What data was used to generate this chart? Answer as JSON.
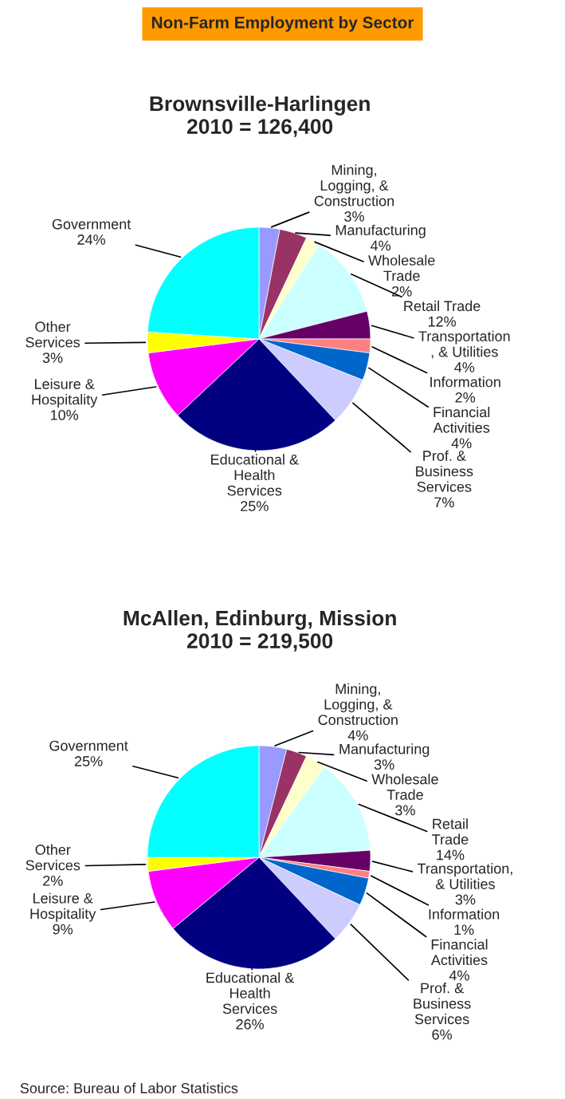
{
  "chart_data": [
    {
      "type": "pie",
      "title": "Brownsville-Harlingen\n2010 = 126,400",
      "annotations": [
        "Non-Farm Employment by Sector"
      ],
      "categories": [
        "Mining,\nLogging, &\nConstruction",
        "Manufacturing",
        "Wholesale\nTrade",
        "Retail Trade",
        "Transportation\n, & Utilities",
        "Information",
        "Financial\nActivities",
        "Prof. &\nBusiness\nServices",
        "Educational &\nHealth\nServices",
        "Leisure &\nHospitality",
        "Other\nServices",
        "Government"
      ],
      "values": [
        3,
        4,
        2,
        12,
        4,
        2,
        4,
        7,
        25,
        10,
        3,
        24
      ],
      "value_labels": [
        "3%",
        "4%",
        "2%",
        "12%",
        "4%",
        "2%",
        "4%",
        "7%",
        "25%",
        "10%",
        "3%",
        "24%"
      ],
      "colors": [
        "#9999ff",
        "#993366",
        "#ffffcc",
        "#ccffff",
        "#660066",
        "#ff8080",
        "#0066cc",
        "#ccccff",
        "#000080",
        "#ff00ff",
        "#ffff00",
        "#00ffff"
      ]
    },
    {
      "type": "pie",
      "title": "McAllen, Edinburg, Mission\n2010 = 219,500",
      "annotations": [
        "Source: Bureau of Labor Statistics"
      ],
      "categories": [
        "Mining,\nLogging, &\nConstruction",
        "Manufacturing",
        "Wholesale\nTrade",
        "Retail\nTrade",
        "Transportation,\n& Utilities",
        "Information",
        "Financial\nActivities",
        "Prof. &\nBusiness\nServices",
        "Educational &\nHealth\nServices",
        "Leisure &\nHospitality",
        "Other\nServices",
        "Government"
      ],
      "values": [
        4,
        3,
        3,
        14,
        3,
        1,
        4,
        6,
        26,
        9,
        2,
        25
      ],
      "value_labels": [
        "4%",
        "3%",
        "3%",
        "14%",
        "3%",
        "1%",
        "4%",
        "6%",
        "26%",
        "9%",
        "2%",
        "25%"
      ],
      "colors": [
        "#9999ff",
        "#993366",
        "#ffffcc",
        "#ccffff",
        "#660066",
        "#ff8080",
        "#0066cc",
        "#ccccff",
        "#000080",
        "#ff00ff",
        "#ffff00",
        "#00ffff"
      ]
    }
  ]
}
